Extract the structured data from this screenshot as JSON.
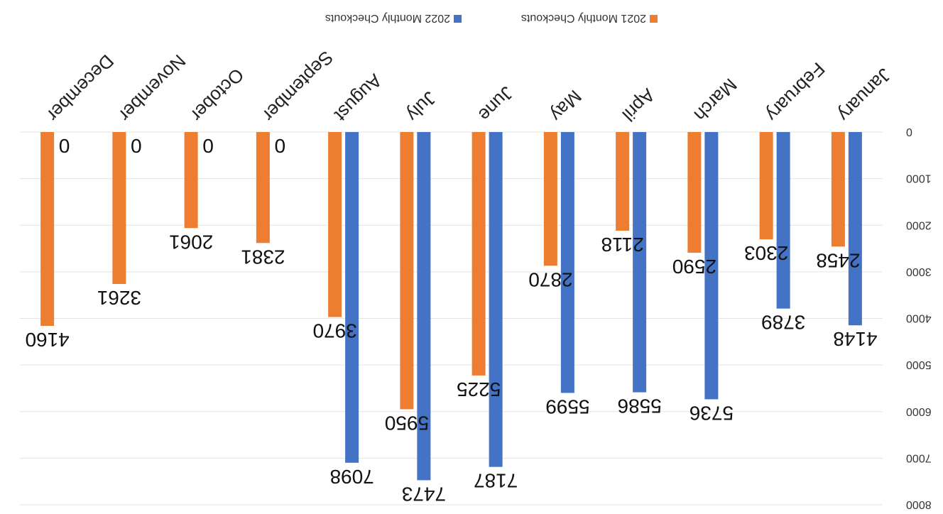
{
  "chart_data": {
    "type": "bar",
    "orientation": "upside-down",
    "categories": [
      "January",
      "February",
      "March",
      "April",
      "May",
      "June",
      "July",
      "August",
      "September",
      "October",
      "November",
      "December"
    ],
    "series": [
      {
        "name": "2022 Monthly Checkouts",
        "color": "#4472C4",
        "values": [
          4148,
          3789,
          5736,
          5586,
          5599,
          7187,
          7473,
          7098,
          null,
          null,
          null,
          null
        ]
      },
      {
        "name": "2021 Monthly Checkouts",
        "color": "#ED7D31",
        "values": [
          2458,
          2303,
          2590,
          2118,
          2870,
          5225,
          5950,
          3970,
          2381,
          2061,
          3261,
          4160
        ]
      }
    ],
    "data_labels": {
      "2022 Monthly Checkouts": [
        "4148",
        "3789",
        "5736",
        "5586",
        "5599",
        "7187",
        "7473",
        "7098",
        "0",
        "0",
        "0",
        "0"
      ],
      "2021 Monthly Checkouts": [
        "2458",
        "2303",
        "2590",
        "2118",
        "2870",
        "5225",
        "5950",
        "3970",
        "2381",
        "2061",
        "3261",
        "4160"
      ]
    },
    "y_ticks": [
      "0",
      "1000",
      "2000",
      "3000",
      "4000",
      "5000",
      "6000",
      "7000",
      "8000"
    ],
    "ylim": [
      0,
      8000
    ],
    "grid": true,
    "legend_position": "top"
  }
}
